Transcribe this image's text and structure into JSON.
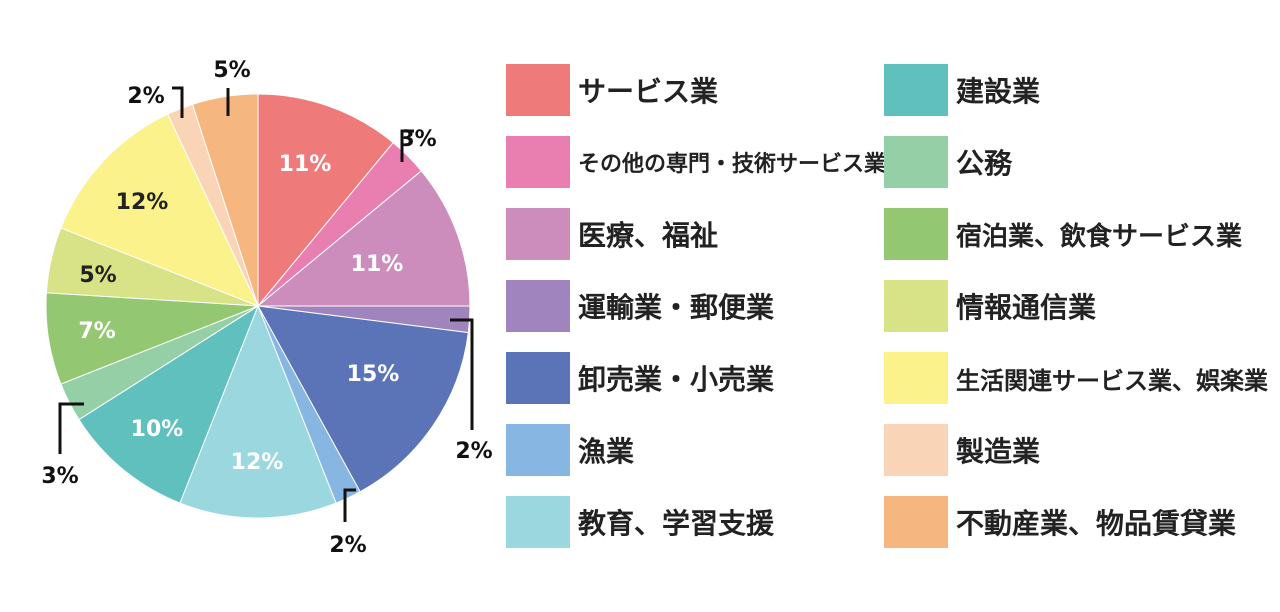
{
  "chart_data": {
    "type": "pie",
    "slices": [
      {
        "label": "サービス業",
        "value": 11,
        "pct_label": "11%",
        "color": "#ef7a7a"
      },
      {
        "label": "その他の専門・技術サービス業",
        "value": 3,
        "pct_label": "3%",
        "color": "#e97fb0"
      },
      {
        "label": "医療、福祉",
        "value": 11,
        "pct_label": "11%",
        "color": "#cc8dbd"
      },
      {
        "label": "運輸業・郵便業",
        "value": 2,
        "pct_label": "2%",
        "color": "#a084bd"
      },
      {
        "label": "卸売業・小売業",
        "value": 15,
        "pct_label": "15%",
        "color": "#5b74b8"
      },
      {
        "label": "漁業",
        "value": 2,
        "pct_label": "2%",
        "color": "#87b6e3"
      },
      {
        "label": "教育、学習支援",
        "value": 12,
        "pct_label": "12%",
        "color": "#9ad7df"
      },
      {
        "label": "建設業",
        "value": 10,
        "pct_label": "10%",
        "color": "#5fc0bd"
      },
      {
        "label": "公務",
        "value": 3,
        "pct_label": "3%",
        "color": "#95cfa6"
      },
      {
        "label": "宿泊業、飲食サービス業",
        "value": 7,
        "pct_label": "7%",
        "color": "#94c772"
      },
      {
        "label": "情報通信業",
        "value": 5,
        "pct_label": "5%",
        "color": "#d8e286"
      },
      {
        "label": "生活関連サービス業、娯楽業",
        "value": 12,
        "pct_label": "12%",
        "color": "#fbf28c"
      },
      {
        "label": "製造業",
        "value": 2,
        "pct_label": "2%",
        "color": "#fad4b6"
      },
      {
        "label": "不動産業、物品賃貸業",
        "value": 5,
        "pct_label": "5%",
        "color": "#f6b680"
      }
    ],
    "legend_position": "right",
    "legend_columns": [
      [
        "サービス業",
        "その他の専門・技術サービス業",
        "医療、福祉",
        "運輸業・郵便業",
        "卸売業・小売業",
        "漁業",
        "教育、学習支援"
      ],
      [
        "建設業",
        "公務",
        "宿泊業、飲食サービス業",
        "情報通信業",
        "生活関連サービス業、娯楽業",
        "製造業",
        "不動産業、物品賃貸業"
      ]
    ]
  }
}
